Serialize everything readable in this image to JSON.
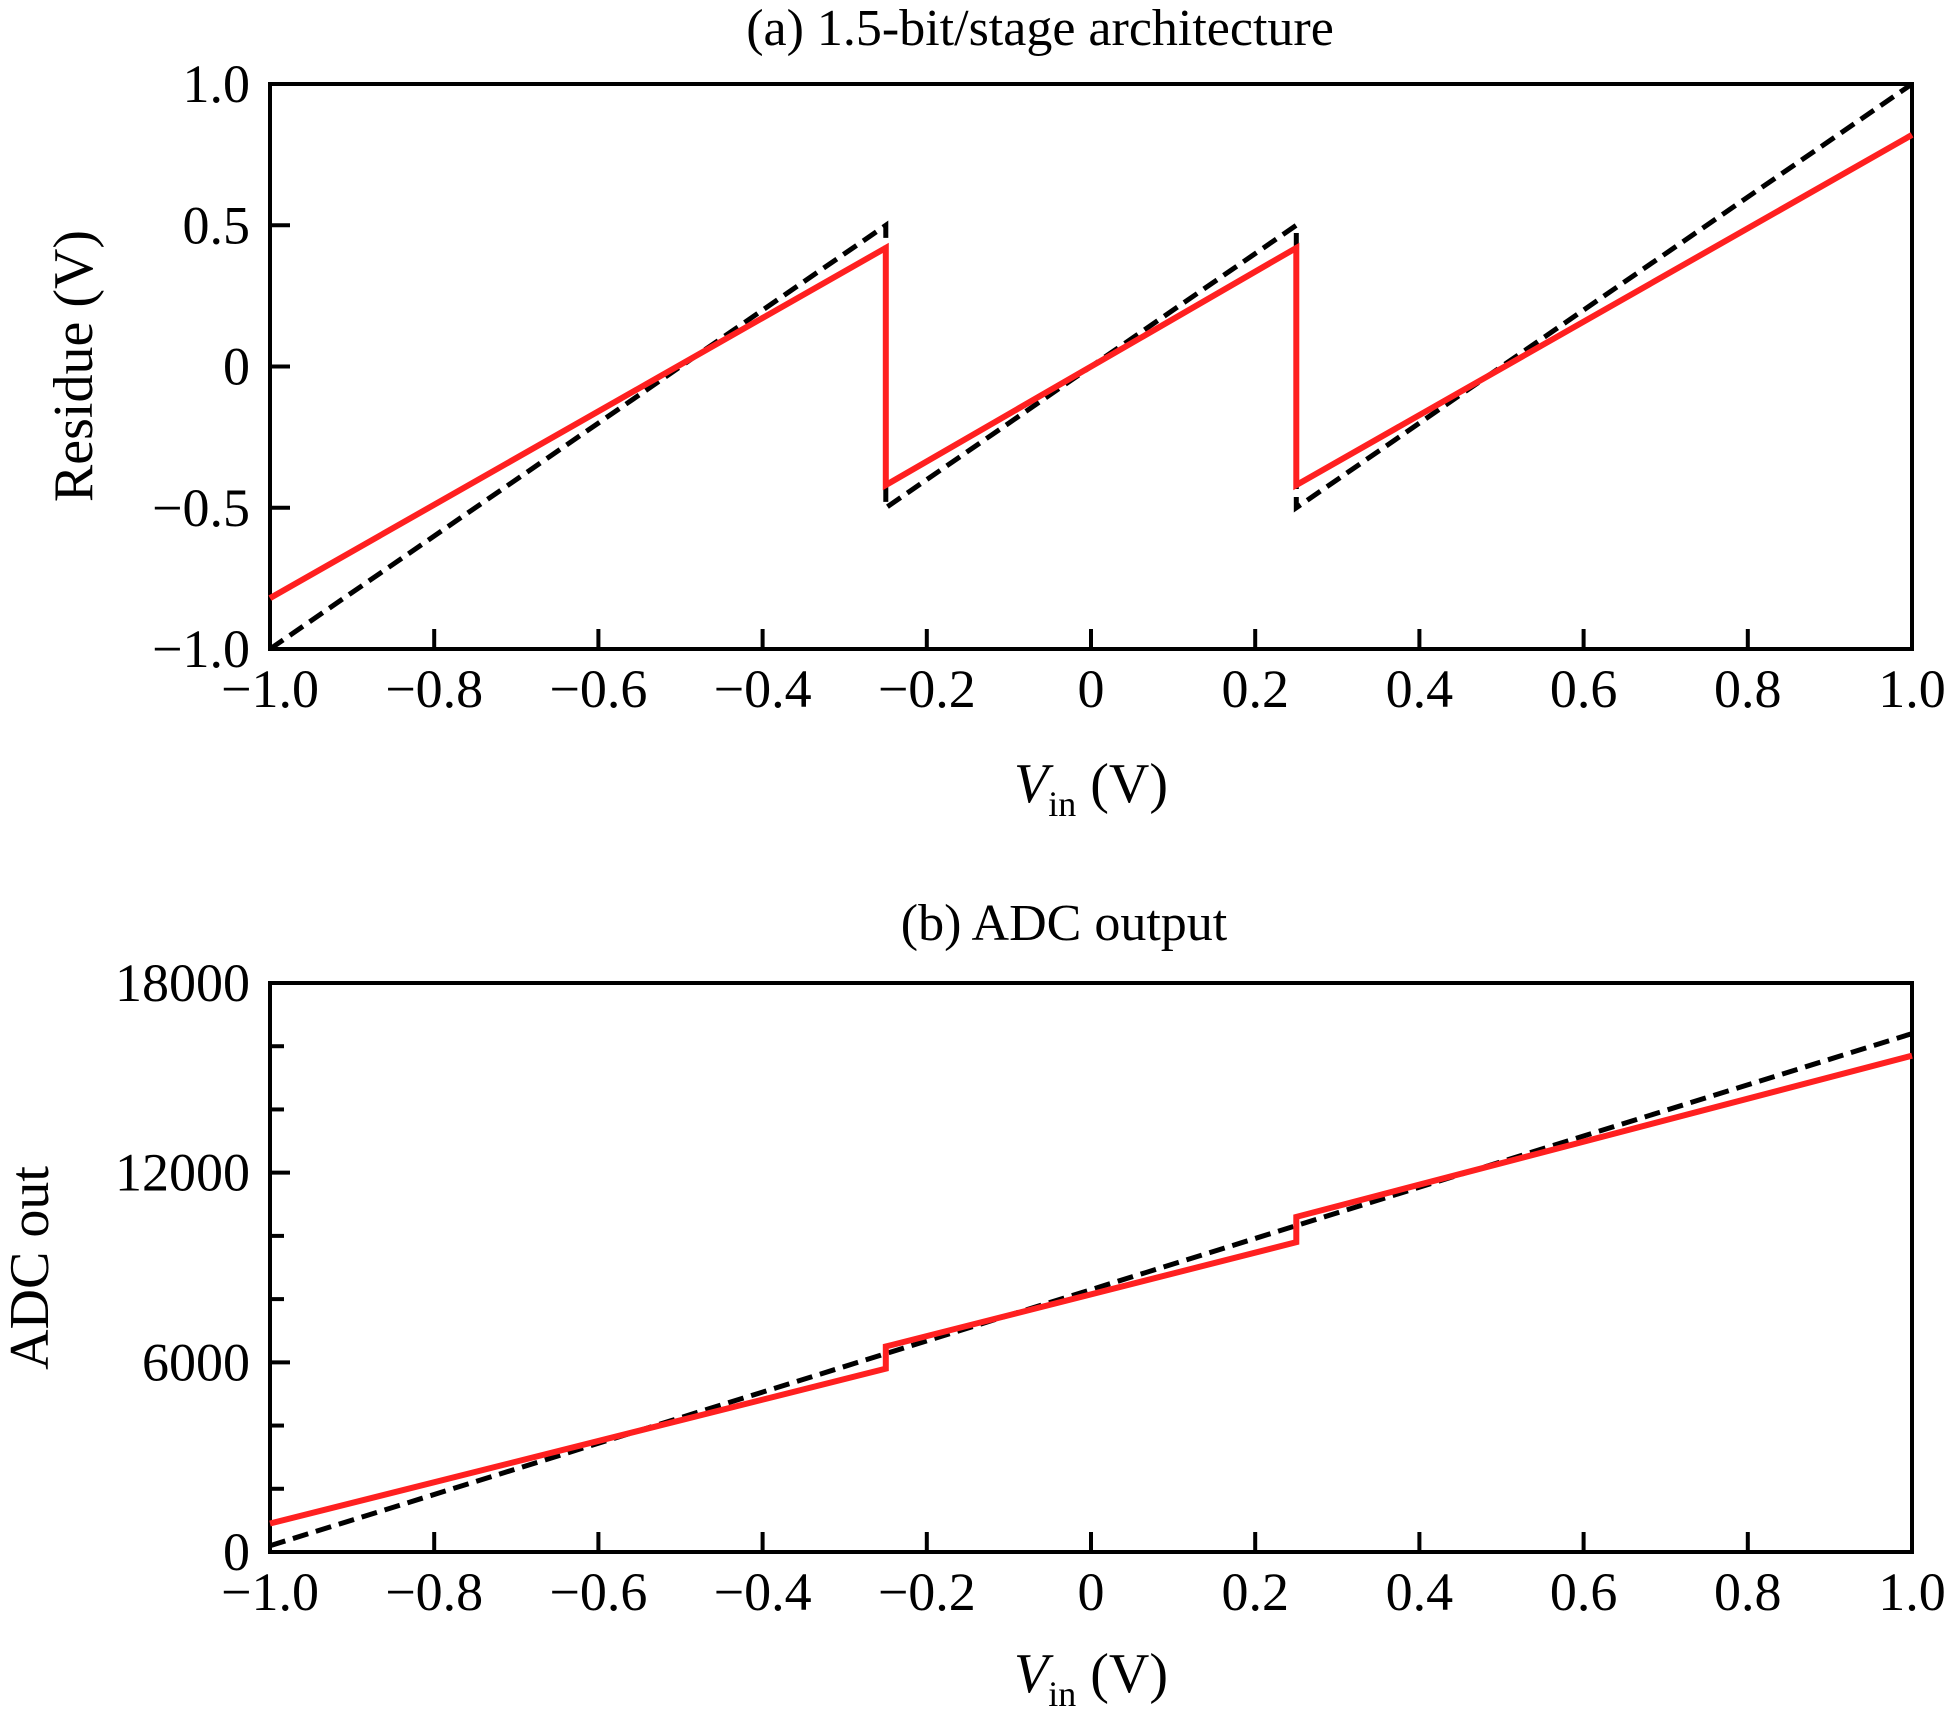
{
  "colors": {
    "ideal": "#000000",
    "actual": "#ff2020",
    "axes": "#000000"
  },
  "chart_data": [
    {
      "type": "line",
      "title": "(a) 1.5-bit/stage architecture",
      "xlabel_main": "V",
      "xlabel_sub": "in",
      "xlabel_unit": "(V)",
      "ylabel": "Residue (V)",
      "xlim": [
        -1.0,
        1.0
      ],
      "ylim": [
        -1.0,
        1.0
      ],
      "xticks": [
        -1.0,
        -0.8,
        -0.6,
        -0.4,
        -0.2,
        0,
        0.2,
        0.4,
        0.6,
        0.8,
        1.0
      ],
      "xtick_labels": [
        "−1.0",
        "−0.8",
        "−0.6",
        "−0.4",
        "−0.2",
        "0",
        "0.2",
        "0.4",
        "0.6",
        "0.8",
        "1.0"
      ],
      "yticks": [
        -1.0,
        -0.5,
        0,
        0.5,
        1.0
      ],
      "ytick_labels": [
        "−1.0",
        "−0.5",
        "0",
        "0.5",
        "1.0"
      ],
      "grid": false,
      "series": [
        {
          "style": "dashed",
          "color": "#000000",
          "x": [
            -1.0,
            -0.25,
            -0.25,
            0.25,
            0.25,
            1.0
          ],
          "y": [
            -1.0,
            0.5,
            -0.5,
            0.5,
            -0.5,
            1.0
          ]
        },
        {
          "style": "solid",
          "color": "#ff2020",
          "x": [
            -1.0,
            -0.25,
            -0.25,
            0.25,
            0.25,
            1.0
          ],
          "y": [
            -0.82,
            0.42,
            -0.42,
            0.42,
            -0.42,
            0.82
          ]
        }
      ]
    },
    {
      "type": "line",
      "title": "(b) ADC output",
      "xlabel_main": "V",
      "xlabel_sub": "in",
      "xlabel_unit": "(V)",
      "ylabel": "ADC out",
      "xlim": [
        -1.0,
        1.0
      ],
      "ylim": [
        0,
        18000
      ],
      "xticks": [
        -1.0,
        -0.8,
        -0.6,
        -0.4,
        -0.2,
        0,
        0.2,
        0.4,
        0.6,
        0.8,
        1.0
      ],
      "xtick_labels": [
        "−1.0",
        "−0.8",
        "−0.6",
        "−0.4",
        "−0.2",
        "0",
        "0.2",
        "0.4",
        "0.6",
        "0.8",
        "1.0"
      ],
      "yticks": [
        0,
        6000,
        12000,
        18000
      ],
      "ytick_labels": [
        "0",
        "6000",
        "12000",
        "18000"
      ],
      "yminor": [
        2000,
        4000,
        8000,
        10000,
        14000,
        16000
      ],
      "grid": false,
      "series": [
        {
          "style": "dashed",
          "color": "#000000",
          "x": [
            -1.0,
            1.0
          ],
          "y": [
            200,
            16400
          ]
        },
        {
          "style": "solid",
          "color": "#ff2020",
          "x": [
            -1.0,
            -0.25,
            -0.25,
            0.25,
            0.25,
            1.0
          ],
          "y": [
            900,
            5800,
            6500,
            9800,
            10600,
            15700
          ]
        }
      ]
    }
  ]
}
